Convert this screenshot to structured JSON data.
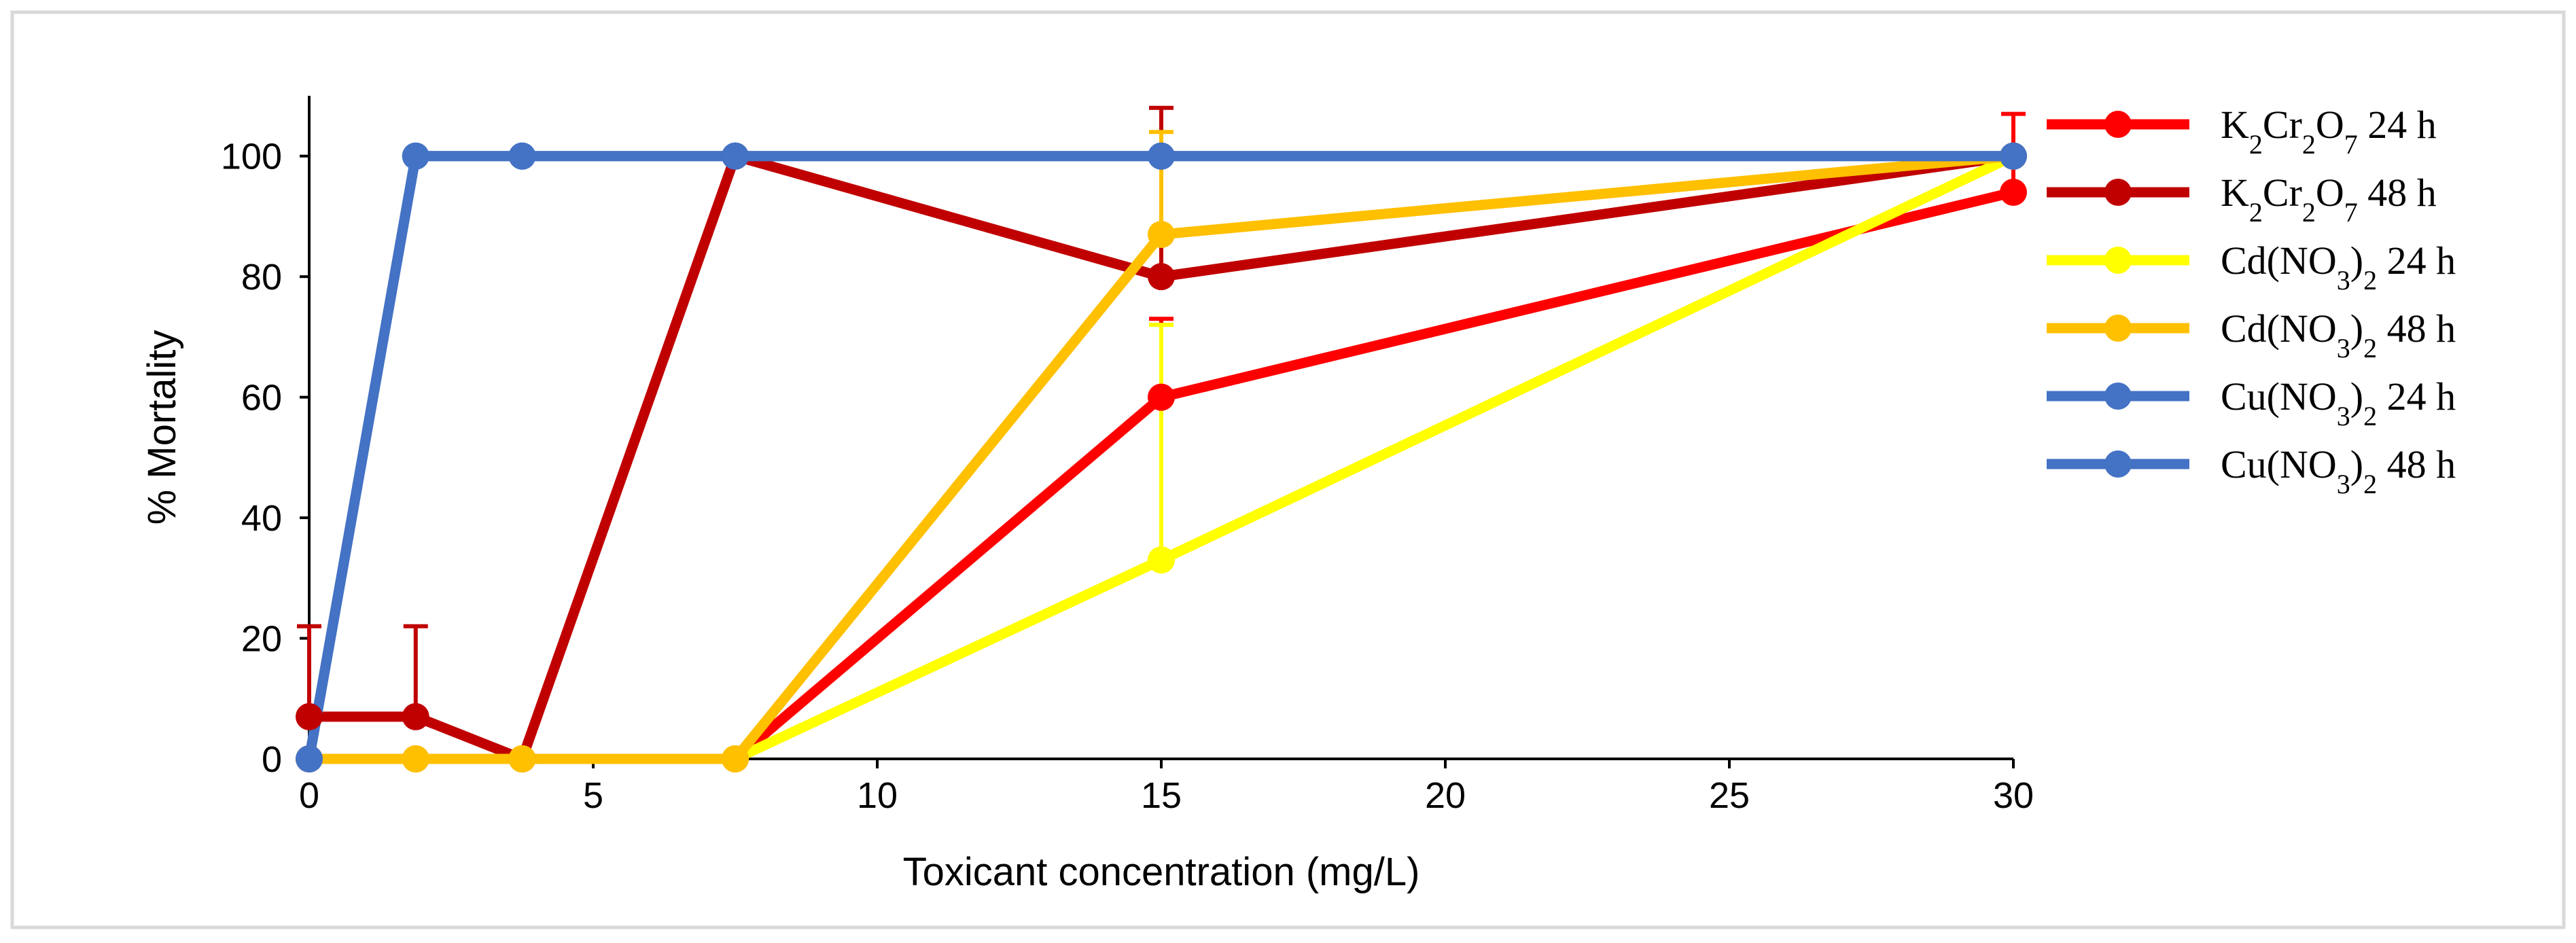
{
  "chart_data": {
    "type": "line",
    "xlabel": "Toxicant concentration (mg/L)",
    "ylabel": "% Mortality",
    "xlim": [
      0,
      30
    ],
    "ylim": [
      0,
      110
    ],
    "x_ticks": [
      0,
      5,
      10,
      15,
      20,
      25,
      30
    ],
    "y_ticks": [
      0,
      20,
      40,
      60,
      80,
      100
    ],
    "grid": false,
    "legend_position": "right",
    "series": [
      {
        "name": "K2Cr2O7 24 h",
        "legend": {
          "p1": "K",
          "s1": "2",
          "p2": "Cr",
          "s2": "2",
          "p3": "O",
          "s3": "7",
          "p4": " 24 h"
        },
        "color": "#ff0000",
        "x": [
          0,
          1.875,
          3.75,
          7.5,
          15,
          30
        ],
        "y": [
          0,
          0,
          0,
          0,
          60,
          94
        ],
        "error_up": [
          null,
          null,
          null,
          null,
          13,
          13
        ]
      },
      {
        "name": "K2Cr2O7 48 h",
        "legend": {
          "p1": "K",
          "s1": "2",
          "p2": "Cr",
          "s2": "2",
          "p3": "O",
          "s3": "7",
          "p4": " 48 h"
        },
        "color": "#c00000",
        "x": [
          0,
          1.875,
          3.75,
          7.5,
          15,
          30
        ],
        "y": [
          7,
          7,
          0,
          100,
          80,
          100
        ],
        "error_up": [
          15,
          15,
          null,
          null,
          28,
          null
        ]
      },
      {
        "name": "Cd(NO3)2 24 h",
        "legend": {
          "p1": "Cd(NO",
          "s1": "3",
          "p2": ")",
          "s2": "2",
          "p3": "",
          "s3": "",
          "p4": " 24 h"
        },
        "color": "#ffff00",
        "x": [
          0,
          1.875,
          3.75,
          7.5,
          15,
          30
        ],
        "y": [
          0,
          0,
          0,
          0,
          33,
          100
        ],
        "error_up": [
          null,
          null,
          null,
          null,
          39,
          null
        ]
      },
      {
        "name": "Cd(NO3)2 48 h",
        "legend": {
          "p1": "Cd(NO",
          "s1": "3",
          "p2": ")",
          "s2": "2",
          "p3": "",
          "s3": "",
          "p4": " 48 h"
        },
        "color": "#ffc000",
        "x": [
          0,
          1.875,
          3.75,
          7.5,
          15,
          30
        ],
        "y": [
          0,
          0,
          0,
          0,
          87,
          100
        ],
        "error_up": [
          null,
          null,
          null,
          null,
          17,
          null
        ]
      },
      {
        "name": "Cu(NO3)2 24 h",
        "legend": {
          "p1": "Cu(NO",
          "s1": "3",
          "p2": ")",
          "s2": "2",
          "p3": "",
          "s3": "",
          "p4": " 24 h"
        },
        "color": "#4472c4",
        "x": [
          0,
          1.875,
          3.75,
          7.5,
          15,
          30
        ],
        "y": [
          0,
          100,
          100,
          100,
          100,
          100
        ],
        "error_up": [
          null,
          null,
          null,
          null,
          null,
          null
        ]
      },
      {
        "name": "Cu(NO3)2 48 h",
        "legend": {
          "p1": "Cu(NO",
          "s1": "3",
          "p2": ")",
          "s2": "2",
          "p3": "",
          "s3": "",
          "p4": " 48 h"
        },
        "color": "#4472c4",
        "x": [
          0,
          1.875,
          3.75,
          7.5,
          15,
          30
        ],
        "y": [
          0,
          100,
          100,
          100,
          100,
          100
        ],
        "error_up": [
          null,
          null,
          null,
          null,
          null,
          null
        ]
      }
    ]
  }
}
